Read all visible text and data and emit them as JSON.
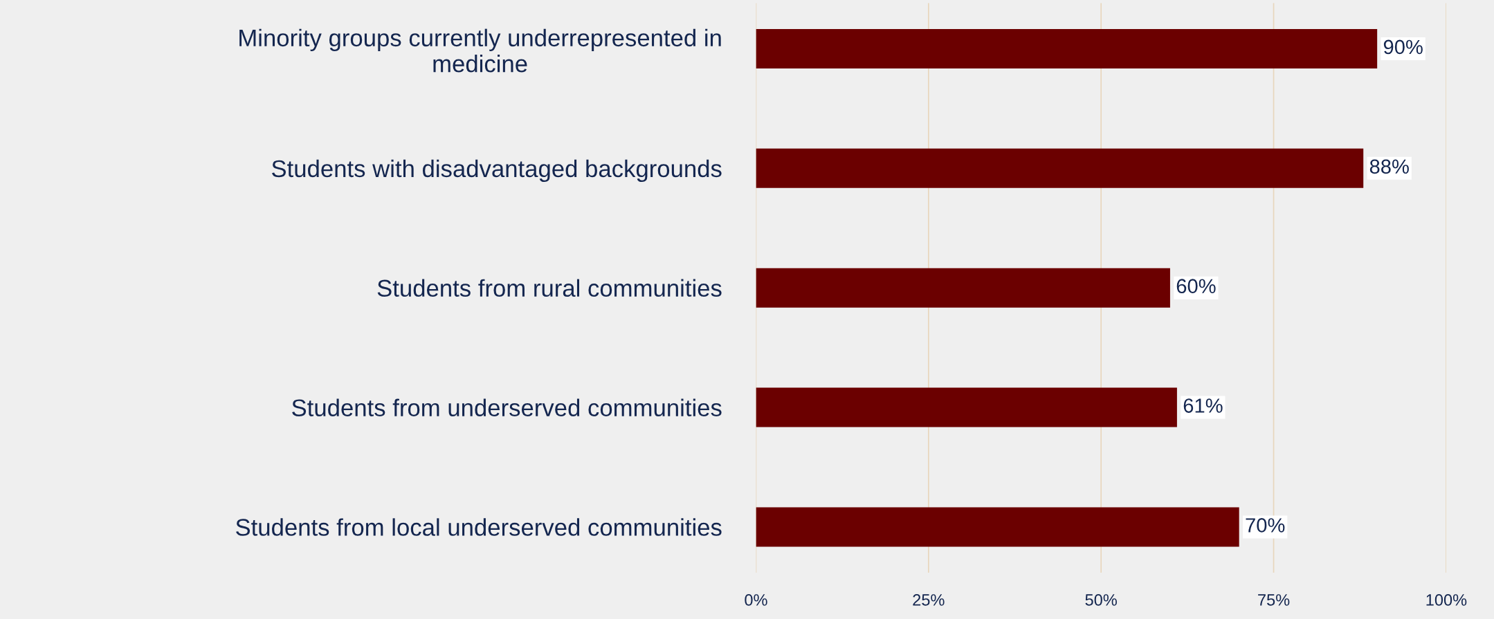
{
  "chart_data": {
    "type": "bar",
    "orientation": "horizontal",
    "categories": [
      "Minority groups currently underrepresented in\nmedicine",
      "Students with disadvantaged backgrounds",
      "Students from rural communities",
      "Students from underserved communities",
      "Students from local underserved communities"
    ],
    "values": [
      90,
      88,
      60,
      61,
      70
    ],
    "value_labels": [
      "90%",
      "88%",
      "60%",
      "61%",
      "70%"
    ],
    "color": "#6b0000",
    "xlim": [
      0,
      100
    ],
    "xticks": [
      {
        "value": 0,
        "label": "0%"
      },
      {
        "value": 25,
        "label": "25%"
      },
      {
        "value": 50,
        "label": "50%"
      },
      {
        "value": 75,
        "label": "75%"
      },
      {
        "value": 100,
        "label": "100%"
      }
    ],
    "grid": "x",
    "legend": false
  }
}
